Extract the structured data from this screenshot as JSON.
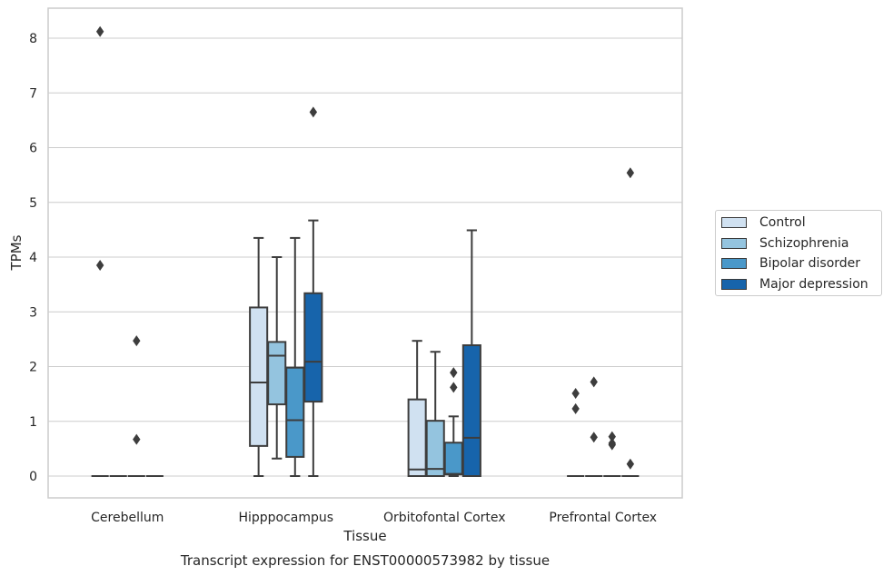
{
  "chart_data": {
    "type": "box",
    "caption": "Transcript expression for ENST00000573982 by tissue",
    "xlabel": "Tissue",
    "ylabel": "TPMs",
    "ylim": [
      -0.4,
      8.55
    ],
    "yticks": [
      0,
      1,
      2,
      3,
      4,
      5,
      6,
      7,
      8
    ],
    "grid": true,
    "legend_placement": "right",
    "categories": [
      "Cerebellum",
      "Hipppocampus",
      "Orbitofontal Cortex",
      "Prefrontal Cortex"
    ],
    "series": [
      {
        "name": "Control",
        "color": "#d0e1f1",
        "boxes": [
          {
            "whislo": 0,
            "q1": 0,
            "med": 0,
            "q3": 0,
            "whishi": 0,
            "fliers": [
              8.12,
              3.85
            ]
          },
          {
            "whislo": 0,
            "q1": 0.55,
            "med": 1.71,
            "q3": 3.08,
            "whishi": 4.35,
            "fliers": []
          },
          {
            "whislo": 0,
            "q1": 0,
            "med": 0.12,
            "q3": 1.4,
            "whishi": 2.47,
            "fliers": []
          },
          {
            "whislo": 0,
            "q1": 0,
            "med": 0,
            "q3": 0,
            "whishi": 0,
            "fliers": [
              1.51,
              1.23
            ]
          }
        ]
      },
      {
        "name": "Schizophrenia",
        "color": "#94c4df",
        "boxes": [
          {
            "whislo": 0,
            "q1": 0,
            "med": 0,
            "q3": 0,
            "whishi": 0,
            "fliers": []
          },
          {
            "whislo": 0.32,
            "q1": 1.31,
            "med": 2.2,
            "q3": 2.45,
            "whishi": 4.0,
            "fliers": []
          },
          {
            "whislo": 0,
            "q1": 0,
            "med": 0.13,
            "q3": 1.01,
            "whishi": 2.27,
            "fliers": []
          },
          {
            "whislo": 0,
            "q1": 0,
            "med": 0,
            "q3": 0,
            "whishi": 0,
            "fliers": [
              1.72,
              0.71
            ]
          }
        ]
      },
      {
        "name": "Bipolar disorder",
        "color": "#4a98c9",
        "boxes": [
          {
            "whislo": 0,
            "q1": 0,
            "med": 0,
            "q3": 0,
            "whishi": 0,
            "fliers": [
              2.47,
              0.67
            ]
          },
          {
            "whislo": 0,
            "q1": 0.35,
            "med": 1.02,
            "q3": 1.98,
            "whishi": 4.35,
            "fliers": []
          },
          {
            "whislo": 0,
            "q1": 0.03,
            "med": 0.04,
            "q3": 0.61,
            "whishi": 1.09,
            "fliers": [
              1.89,
              1.62
            ]
          },
          {
            "whislo": 0,
            "q1": 0,
            "med": 0,
            "q3": 0,
            "whishi": 0,
            "fliers": [
              0.72,
              0.6,
              0.57
            ]
          }
        ]
      },
      {
        "name": "Major depression",
        "color": "#1764ab",
        "boxes": [
          {
            "whislo": 0,
            "q1": 0,
            "med": 0,
            "q3": 0,
            "whishi": 0,
            "fliers": []
          },
          {
            "whislo": 0,
            "q1": 1.36,
            "med": 2.09,
            "q3": 3.34,
            "whishi": 4.67,
            "fliers": [
              6.65
            ]
          },
          {
            "whislo": 0,
            "q1": 0,
            "med": 0.7,
            "q3": 2.39,
            "whishi": 4.49,
            "fliers": []
          },
          {
            "whislo": 0,
            "q1": 0,
            "med": 0,
            "q3": 0,
            "whishi": 0,
            "fliers": [
              5.54,
              0.22
            ]
          }
        ]
      }
    ]
  }
}
